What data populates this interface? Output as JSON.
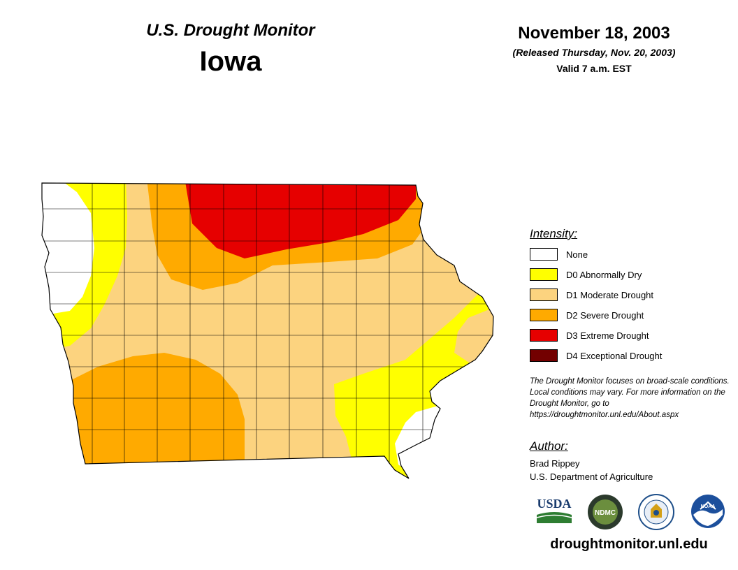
{
  "header": {
    "product": "U.S. Drought Monitor",
    "state": "Iowa",
    "date": "November 18, 2003",
    "released": "(Released Thursday, Nov. 20, 2003)",
    "valid": "Valid 7 a.m. EST"
  },
  "legend": {
    "title": "Intensity:",
    "items": [
      {
        "label": "None",
        "color": "#ffffff"
      },
      {
        "label": "D0 Abnormally Dry",
        "color": "#ffff00"
      },
      {
        "label": "D1 Moderate Drought",
        "color": "#fcd37f"
      },
      {
        "label": "D2 Severe Drought",
        "color": "#ffaa00"
      },
      {
        "label": "D3 Extreme Drought",
        "color": "#e60000"
      },
      {
        "label": "D4 Exceptional Drought",
        "color": "#730000"
      }
    ]
  },
  "note": "The Drought Monitor focuses on broad-scale conditions. Local conditions may vary. For more information on the Drought Monitor, go to https://droughtmonitor.unl.edu/About.aspx",
  "author": {
    "title": "Author:",
    "name": "Brad Rippey",
    "org": "U.S. Department of Agriculture"
  },
  "logos": [
    {
      "name": "usda-logo",
      "text": "USDA"
    },
    {
      "name": "ndmc-logo",
      "text": "NDMC"
    },
    {
      "name": "doc-logo",
      "text": ""
    },
    {
      "name": "noaa-logo",
      "text": "NOAA"
    }
  ],
  "url": "droughtmonitor.unl.edu"
}
